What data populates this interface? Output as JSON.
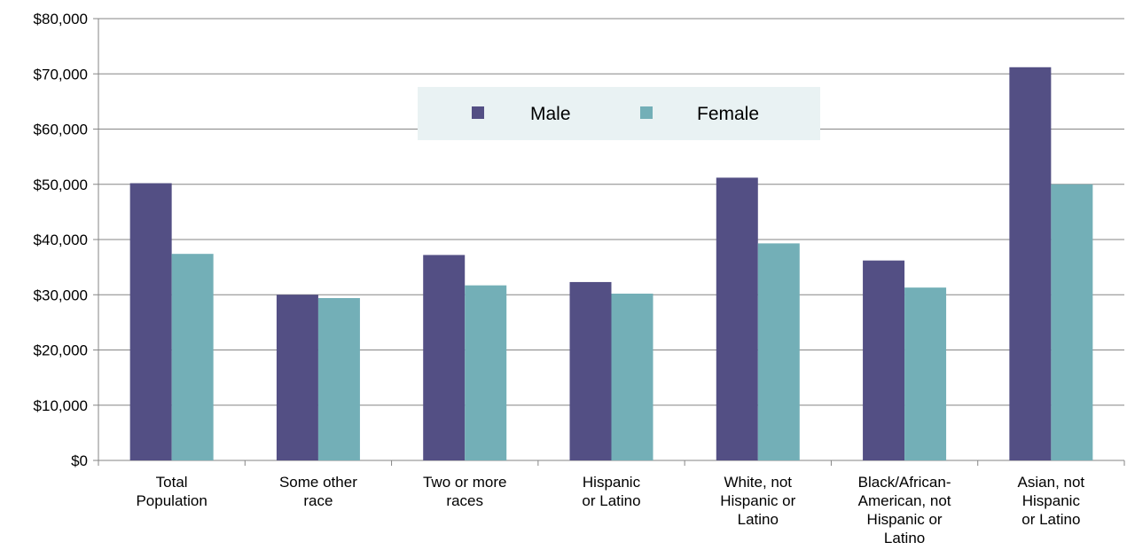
{
  "chart_data": {
    "type": "bar",
    "title": "",
    "xlabel": "",
    "ylabel": "",
    "ylim": [
      0,
      80000
    ],
    "y_ticks": [
      0,
      10000,
      20000,
      30000,
      40000,
      50000,
      60000,
      70000,
      80000
    ],
    "y_tick_labels": [
      "$0",
      "$10,000",
      "$20,000",
      "$30,000",
      "$40,000",
      "$50,000",
      "$60,000",
      "$70,000",
      "$80,000"
    ],
    "grid": true,
    "legend_position": "top-center",
    "categories": [
      [
        "Total",
        "Population"
      ],
      [
        "Some other",
        "race"
      ],
      [
        "Two or more",
        "races"
      ],
      [
        "Hispanic",
        "or Latino"
      ],
      [
        "White, not",
        "Hispanic or",
        "Latino"
      ],
      [
        "Black/African-",
        "American, not",
        "Hispanic or",
        "Latino"
      ],
      [
        "Asian, not",
        "Hispanic",
        "or Latino"
      ]
    ],
    "series": [
      {
        "name": "Male",
        "color": "#534F84",
        "values": [
          50200,
          30000,
          37200,
          32300,
          51200,
          36200,
          71200
        ]
      },
      {
        "name": "Female",
        "color": "#73AFB7",
        "values": [
          37400,
          29400,
          31700,
          30200,
          39300,
          31300,
          50000
        ]
      }
    ]
  }
}
